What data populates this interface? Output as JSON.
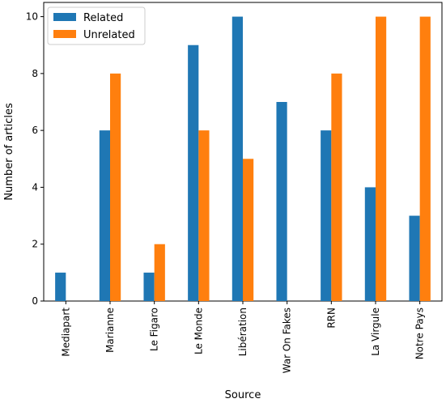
{
  "chart_data": {
    "type": "bar",
    "title": "",
    "xlabel": "Source",
    "ylabel": "Number of articles",
    "categories": [
      "Mediapart",
      "Marianne",
      "Le Figaro",
      "Le Monde",
      "Libération",
      "War On Fakes",
      "RRN",
      "La Virgule",
      "Notre Pays"
    ],
    "series": [
      {
        "name": "Related",
        "color": "#1f77b4",
        "values": [
          1,
          6,
          1,
          9,
          10,
          7,
          6,
          4,
          3
        ]
      },
      {
        "name": "Unrelated",
        "color": "#ff7f0e",
        "values": [
          0,
          8,
          2,
          6,
          5,
          0,
          8,
          10,
          10
        ]
      }
    ],
    "ylim": [
      0,
      10.5
    ],
    "yticks": [
      0,
      2,
      4,
      6,
      8,
      10
    ],
    "legend_position": "top-left",
    "grid": false
  }
}
